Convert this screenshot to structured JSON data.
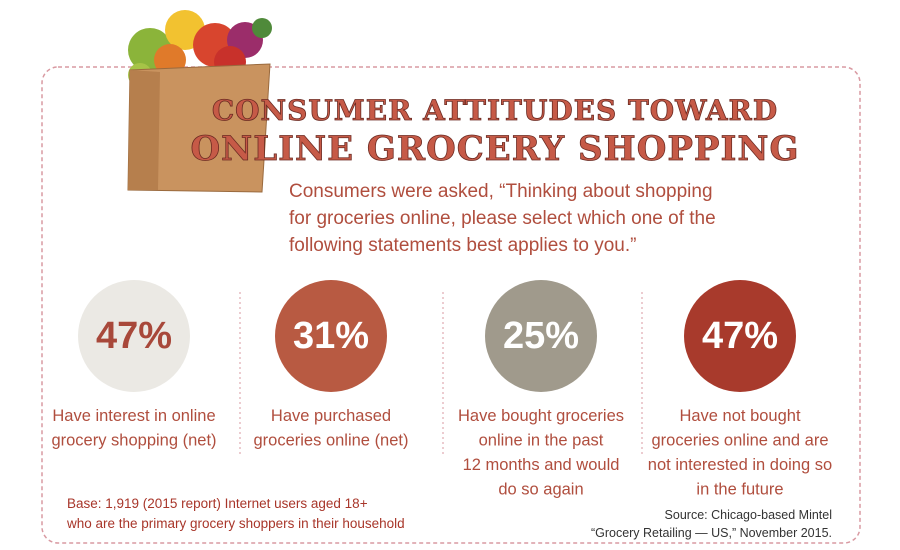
{
  "header": {
    "title_line1": "CONSUMER ATTITUDES TOWARD",
    "title_line2": "ONLINE GROCERY SHOPPING",
    "question": [
      "Consumers were asked, “Thinking about shopping",
      "for groceries online, please select which one of the",
      "following statements best applies to you.”"
    ]
  },
  "stats": [
    {
      "value": "47%",
      "description": [
        "Have interest in online",
        "grocery shopping (net)"
      ]
    },
    {
      "value": "31%",
      "description": [
        "Have purchased",
        "groceries online (net)"
      ]
    },
    {
      "value": "25%",
      "description": [
        "Have bought groceries",
        "online in the past",
        "12 months and would",
        "do so again"
      ]
    },
    {
      "value": "47%",
      "description": [
        "Have not bought",
        "groceries online and are",
        "not interested in doing so",
        "in the future"
      ]
    }
  ],
  "base_note": [
    "Base: 1,919 (2015 report) Internet users aged 18+",
    "who are the primary grocery shoppers in their household"
  ],
  "source": [
    "Source: Chicago-based Mintel",
    "“Grocery Retailing — US,” November 2015."
  ]
}
